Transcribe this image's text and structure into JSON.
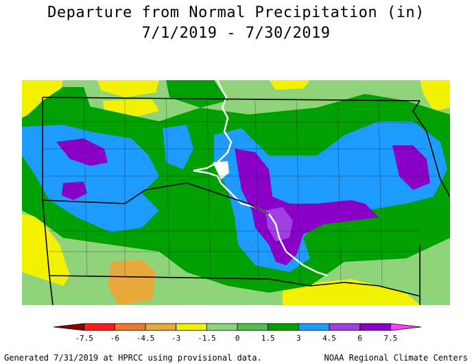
{
  "header": {
    "title": "Departure from Normal Precipitation (in)",
    "date_range": "7/1/2019 - 7/30/2019"
  },
  "legend": {
    "ticks": [
      "-7.5",
      "-6",
      "-4.5",
      "-3",
      "-1.5",
      "0",
      "1.5",
      "3",
      "4.5",
      "6",
      "7.5"
    ],
    "colors": [
      "#8b0000",
      "#ff1a1a",
      "#ee7a2a",
      "#e8a93c",
      "#f2f200",
      "#8fd47a",
      "#4cbf4c",
      "#00a000",
      "#1e9bff",
      "#a040e0",
      "#8a00c8",
      "#ff40ff"
    ]
  },
  "footer": {
    "generated": "Generated 7/31/2019 at HPRCC using provisional data.",
    "credit": "NOAA Regional Climate Centers"
  }
}
